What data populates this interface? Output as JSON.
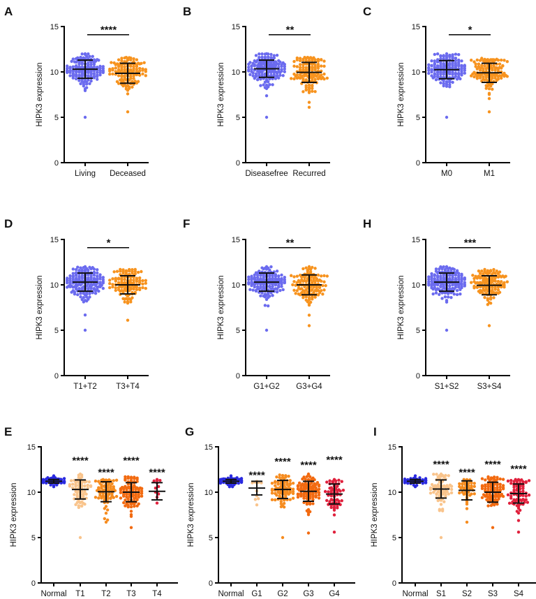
{
  "chart_data": [
    {
      "panel": "A",
      "type": "scatter",
      "ylabel": "HIPK3 expression",
      "ylim": [
        0,
        15
      ],
      "yticks": [
        0,
        5,
        10,
        15
      ],
      "significance": "****",
      "categories": [
        "Living",
        "Deceased"
      ],
      "colors": [
        "#6b6bef",
        "#f7931e"
      ],
      "groups": [
        {
          "name": "Living",
          "mean": 10.3,
          "sd": 1.0,
          "min": 5.0,
          "max": 12.0
        },
        {
          "name": "Deceased",
          "mean": 9.85,
          "sd": 1.1,
          "min": 5.6,
          "max": 11.6
        }
      ]
    },
    {
      "panel": "B",
      "type": "scatter",
      "ylabel": "HIPK3 expression",
      "ylim": [
        0,
        15
      ],
      "yticks": [
        0,
        5,
        10,
        15
      ],
      "significance": "**",
      "categories": [
        "Diseasefree",
        "Recurred"
      ],
      "colors": [
        "#6b6bef",
        "#f7931e"
      ],
      "groups": [
        {
          "name": "Diseasefree",
          "mean": 10.35,
          "sd": 0.95,
          "min": 5.0,
          "max": 12.0
        },
        {
          "name": "Recurred",
          "mean": 9.95,
          "sd": 1.1,
          "min": 6.1,
          "max": 11.6
        }
      ]
    },
    {
      "panel": "C",
      "type": "scatter",
      "ylabel": "HIPK3 expression",
      "ylim": [
        0,
        15
      ],
      "yticks": [
        0,
        5,
        10,
        15
      ],
      "significance": "*",
      "categories": [
        "M0",
        "M1"
      ],
      "colors": [
        "#6b6bef",
        "#f7931e"
      ],
      "groups": [
        {
          "name": "M0",
          "mean": 10.25,
          "sd": 1.0,
          "min": 5.0,
          "max": 12.0
        },
        {
          "name": "M1",
          "mean": 9.9,
          "sd": 1.05,
          "min": 5.6,
          "max": 11.5
        }
      ]
    },
    {
      "panel": "D",
      "type": "scatter",
      "ylabel": "HIPK3 expression",
      "ylim": [
        0,
        15
      ],
      "yticks": [
        0,
        5,
        10,
        15
      ],
      "significance": "*",
      "categories": [
        "T1+T2",
        "T3+T4"
      ],
      "colors": [
        "#6b6bef",
        "#f7931e"
      ],
      "groups": [
        {
          "name": "T1+T2",
          "mean": 10.3,
          "sd": 1.0,
          "min": 5.0,
          "max": 12.0
        },
        {
          "name": "T3+T4",
          "mean": 10.0,
          "sd": 1.0,
          "min": 6.1,
          "max": 11.7
        }
      ]
    },
    {
      "panel": "F",
      "type": "scatter",
      "ylabel": "HIPK3 expression",
      "ylim": [
        0,
        15
      ],
      "yticks": [
        0,
        5,
        10,
        15
      ],
      "significance": "**",
      "categories": [
        "G1+G2",
        "G3+G4"
      ],
      "colors": [
        "#6b6bef",
        "#f7931e"
      ],
      "groups": [
        {
          "name": "G1+G2",
          "mean": 10.3,
          "sd": 1.0,
          "min": 5.0,
          "max": 12.0
        },
        {
          "name": "G3+G4",
          "mean": 10.0,
          "sd": 1.1,
          "min": 5.5,
          "max": 12.0
        }
      ]
    },
    {
      "panel": "H",
      "type": "scatter",
      "ylabel": "HIPK3 expression",
      "ylim": [
        0,
        15
      ],
      "yticks": [
        0,
        5,
        10,
        15
      ],
      "significance": "***",
      "categories": [
        "S1+S2",
        "S3+S4"
      ],
      "colors": [
        "#6b6bef",
        "#f7931e"
      ],
      "groups": [
        {
          "name": "S1+S2",
          "mean": 10.3,
          "sd": 1.0,
          "min": 5.0,
          "max": 12.0
        },
        {
          "name": "S3+S4",
          "mean": 9.95,
          "sd": 1.05,
          "min": 5.5,
          "max": 11.7
        }
      ]
    },
    {
      "panel": "E",
      "type": "scatter",
      "ylabel": "HIPK3 expression",
      "ylim": [
        0,
        15
      ],
      "yticks": [
        0,
        5,
        10,
        15
      ],
      "categories": [
        "Normal",
        "T1",
        "T2",
        "T3",
        "T4"
      ],
      "colors": [
        "#2a2ae0",
        "#f9c48c",
        "#f68c1f",
        "#f26a10",
        "#e0203c"
      ],
      "group_significance": [
        "",
        "****",
        "****",
        "****",
        "****"
      ],
      "groups": [
        {
          "name": "Normal",
          "mean": 11.2,
          "sd": 0.2,
          "min": 10.6,
          "max": 11.8
        },
        {
          "name": "T1",
          "mean": 10.3,
          "sd": 1.05,
          "min": 5.0,
          "max": 12.0
        },
        {
          "name": "T2",
          "mean": 10.05,
          "sd": 1.1,
          "min": 6.7,
          "max": 11.4
        },
        {
          "name": "T3",
          "mean": 10.0,
          "sd": 1.05,
          "min": 6.1,
          "max": 11.7
        },
        {
          "name": "T4",
          "mean": 10.1,
          "sd": 0.95,
          "min": 8.8,
          "max": 11.4
        }
      ]
    },
    {
      "panel": "G",
      "type": "scatter",
      "ylabel": "HIPK3 expression",
      "ylim": [
        0,
        15
      ],
      "yticks": [
        0,
        5,
        10,
        15
      ],
      "categories": [
        "Normal",
        "G1",
        "G2",
        "G3",
        "G4"
      ],
      "colors": [
        "#2a2ae0",
        "#f9c48c",
        "#f68c1f",
        "#f26a10",
        "#e0203c"
      ],
      "group_significance": [
        "",
        "****",
        "****",
        "****",
        "****"
      ],
      "groups": [
        {
          "name": "Normal",
          "mean": 11.2,
          "sd": 0.2,
          "min": 10.6,
          "max": 11.8
        },
        {
          "name": "G1",
          "mean": 10.45,
          "sd": 0.75,
          "min": 8.6,
          "max": 11.2
        },
        {
          "name": "G2",
          "mean": 10.3,
          "sd": 1.0,
          "min": 5.0,
          "max": 11.9
        },
        {
          "name": "G3",
          "mean": 10.1,
          "sd": 1.1,
          "min": 5.5,
          "max": 12.0
        },
        {
          "name": "G4",
          "mean": 9.8,
          "sd": 1.1,
          "min": 5.6,
          "max": 11.4
        }
      ]
    },
    {
      "panel": "I",
      "type": "scatter",
      "ylabel": "HIPK3 expression",
      "ylim": [
        0,
        15
      ],
      "yticks": [
        0,
        5,
        10,
        15
      ],
      "categories": [
        "Normal",
        "S1",
        "S2",
        "S3",
        "S4"
      ],
      "colors": [
        "#2a2ae0",
        "#f9c48c",
        "#f68c1f",
        "#f26a10",
        "#e0203c"
      ],
      "group_significance": [
        "",
        "****",
        "****",
        "****",
        "****"
      ],
      "groups": [
        {
          "name": "Normal",
          "mean": 11.2,
          "sd": 0.2,
          "min": 10.6,
          "max": 11.8
        },
        {
          "name": "S1",
          "mean": 10.35,
          "sd": 1.0,
          "min": 5.0,
          "max": 12.0
        },
        {
          "name": "S2",
          "mean": 10.2,
          "sd": 1.05,
          "min": 6.7,
          "max": 11.4
        },
        {
          "name": "S3",
          "mean": 10.0,
          "sd": 1.1,
          "min": 6.1,
          "max": 11.7
        },
        {
          "name": "S4",
          "mean": 9.85,
          "sd": 1.05,
          "min": 5.6,
          "max": 11.4
        }
      ]
    }
  ]
}
